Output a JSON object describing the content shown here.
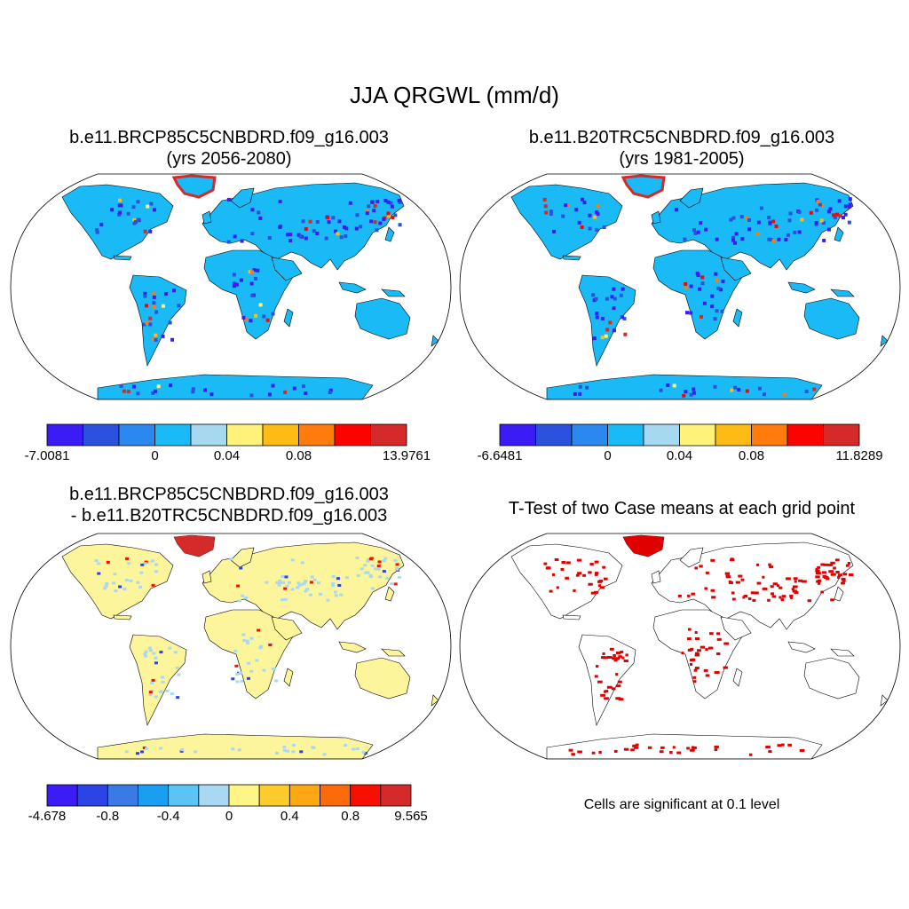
{
  "figure": {
    "title": "JJA QRGWL (mm/d)"
  },
  "panels": [
    {
      "id": "case1",
      "title_line1": "b.e11.BRCP85C5CNBDRD.f09_g16.003",
      "title_line2": "(yrs 2056-2080)",
      "land_color": "#19baf5",
      "colorbar": {
        "colors": [
          "#3c1cf5",
          "#2c52dd",
          "#2a88ee",
          "#19baf5",
          "#a6d8f2",
          "#fff27a",
          "#fdbb14",
          "#fe7b0c",
          "#fd0300",
          "#d42a2a"
        ],
        "labels": [
          "-7.0081",
          "0",
          "0.04",
          "0.08",
          "13.9761"
        ],
        "label_edges": [
          0,
          3,
          5,
          7,
          10
        ]
      }
    },
    {
      "id": "case2",
      "title_line1": "b.e11.B20TRC5CNBDRD.f09_g16.003",
      "title_line2": "(yrs 1981-2005)",
      "land_color": "#19baf5",
      "colorbar": {
        "colors": [
          "#3c1cf5",
          "#2c52dd",
          "#2a88ee",
          "#19baf5",
          "#a6d8f2",
          "#fff27a",
          "#fdbb14",
          "#fe7b0c",
          "#fd0300",
          "#d42a2a"
        ],
        "labels": [
          "-6.6481",
          "0",
          "0.04",
          "0.08",
          "11.8289"
        ],
        "label_edges": [
          0,
          3,
          5,
          7,
          10
        ]
      }
    },
    {
      "id": "diff",
      "title_line1": "b.e11.BRCP85C5CNBDRD.f09_g16.003",
      "title_line2": "- b.e11.B20TRC5CNBDRD.f09_g16.003",
      "land_color": "#fdf59c",
      "colorbar": {
        "colors": [
          "#3c1cf5",
          "#2a44e6",
          "#3a7ae6",
          "#1a9ef2",
          "#5cc4f5",
          "#a8d8f2",
          "#fff486",
          "#fdcc2a",
          "#fda812",
          "#fd6a0c",
          "#f80f00",
          "#d42a2a"
        ],
        "labels": [
          "-4.678",
          "-0.8",
          "-0.4",
          "0",
          "0.4",
          "0.8",
          "9.565"
        ],
        "label_edges": [
          0,
          2,
          4,
          6,
          8,
          10,
          12
        ]
      }
    },
    {
      "id": "ttest",
      "title_line1": "T-Test of two Case means at each grid point",
      "land_color": "#ffffff",
      "signif_color": "#e00000",
      "note": "Cells are significant at 0.1 level"
    }
  ]
}
